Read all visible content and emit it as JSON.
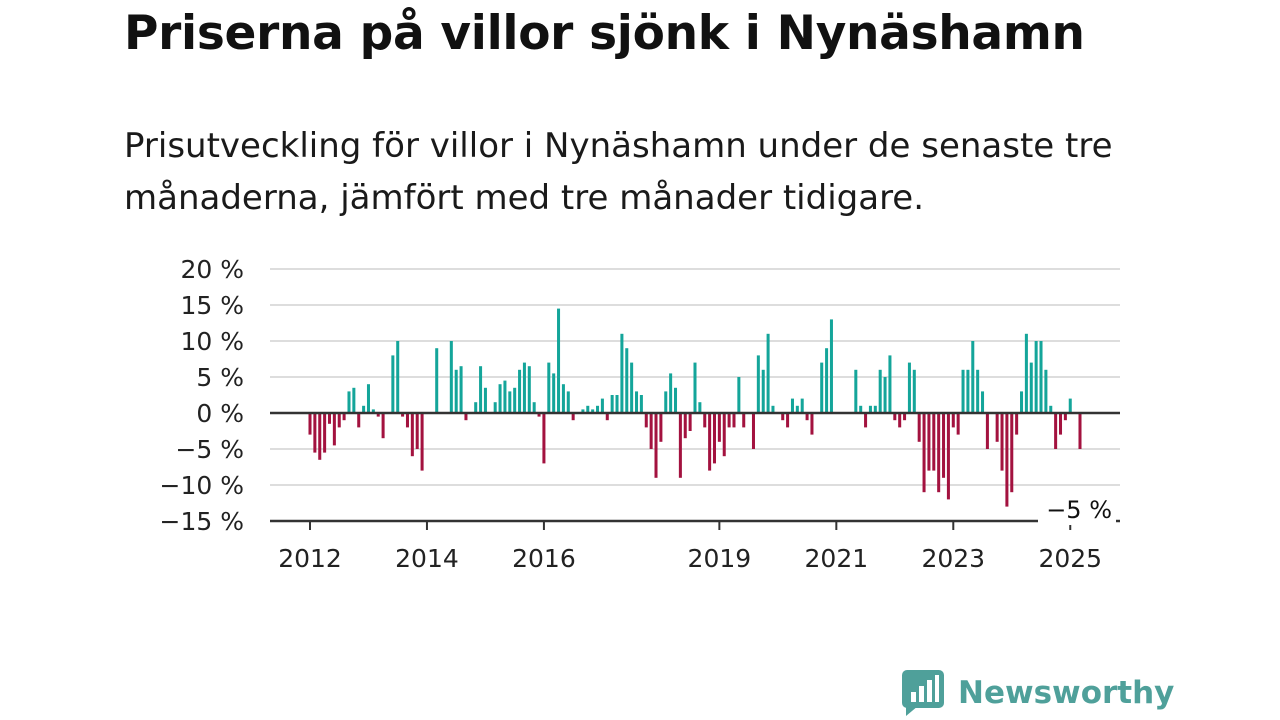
{
  "title": "Priserna på villor sjönk i Nynäshamn",
  "subtitle": "Prisutveckling för villor i Nynäshamn under de senaste tre månaderna, jämfört med tre månader tidigare.",
  "brand": {
    "name": "Newsworthy",
    "logo_icon": "bar-chart-badge-icon"
  },
  "colors": {
    "positive": "#14a59a",
    "negative": "#a3123f",
    "grid": "#dddddd",
    "zero_line": "#333333",
    "brand": "#4fa09a"
  },
  "chart_data": {
    "type": "bar",
    "title": "Priserna på villor sjönk i Nynäshamn",
    "subtitle": "Prisutveckling för villor i Nynäshamn under de senaste tre månaderna, jämfört med tre månader tidigare.",
    "xlabel": "",
    "ylabel": "",
    "unit": "%",
    "x_start": "2012-01",
    "x_end": "2025-03",
    "ylim": [
      -15,
      20
    ],
    "yticks": [
      20,
      15,
      10,
      5,
      0,
      -5,
      -10,
      -15
    ],
    "ytick_labels": [
      "20 %",
      "15 %",
      "10 %",
      "5 %",
      "0 %",
      "−5 %",
      "−10 %",
      "−15 %"
    ],
    "xticks": [
      "2012",
      "2014",
      "2016",
      "2019",
      "2021",
      "2023",
      "2025"
    ],
    "grid": true,
    "legend": "none",
    "annotation": {
      "x": "2025-03",
      "value": -5,
      "label": "−5 %"
    },
    "series": [
      {
        "values": [
          {
            "x": "2012-01",
            "y": -3.0
          },
          {
            "x": "2012-02",
            "y": -5.5
          },
          {
            "x": "2012-03",
            "y": -6.5
          },
          {
            "x": "2012-04",
            "y": -5.5
          },
          {
            "x": "2012-05",
            "y": -1.5
          },
          {
            "x": "2012-06",
            "y": -4.5
          },
          {
            "x": "2012-07",
            "y": -2.0
          },
          {
            "x": "2012-08",
            "y": -1.0
          },
          {
            "x": "2012-09",
            "y": 3.0
          },
          {
            "x": "2012-10",
            "y": 3.5
          },
          {
            "x": "2012-11",
            "y": -2.0
          },
          {
            "x": "2012-12",
            "y": 1.0
          },
          {
            "x": "2013-01",
            "y": 4.0
          },
          {
            "x": "2013-02",
            "y": 0.5
          },
          {
            "x": "2013-03",
            "y": -0.5
          },
          {
            "x": "2013-04",
            "y": -3.5
          },
          {
            "x": "2013-05",
            "y": 0.0
          },
          {
            "x": "2013-06",
            "y": 8.0
          },
          {
            "x": "2013-07",
            "y": 10.0
          },
          {
            "x": "2013-08",
            "y": -0.5
          },
          {
            "x": "2013-09",
            "y": -2.0
          },
          {
            "x": "2013-10",
            "y": -6.0
          },
          {
            "x": "2013-11",
            "y": -5.0
          },
          {
            "x": "2013-12",
            "y": -8.0
          },
          {
            "x": "2014-01",
            "y": 0.0
          },
          {
            "x": "2014-02",
            "y": 0.0
          },
          {
            "x": "2014-03",
            "y": 9.0
          },
          {
            "x": "2014-04",
            "y": 0.0
          },
          {
            "x": "2014-05",
            "y": 0.0
          },
          {
            "x": "2014-06",
            "y": 10.0
          },
          {
            "x": "2014-07",
            "y": 6.0
          },
          {
            "x": "2014-08",
            "y": 6.5
          },
          {
            "x": "2014-09",
            "y": -1.0
          },
          {
            "x": "2014-10",
            "y": 0.0
          },
          {
            "x": "2014-11",
            "y": 1.5
          },
          {
            "x": "2014-12",
            "y": 6.5
          },
          {
            "x": "2015-01",
            "y": 3.5
          },
          {
            "x": "2015-02",
            "y": 0.0
          },
          {
            "x": "2015-03",
            "y": 1.5
          },
          {
            "x": "2015-04",
            "y": 4.0
          },
          {
            "x": "2015-05",
            "y": 4.5
          },
          {
            "x": "2015-06",
            "y": 3.0
          },
          {
            "x": "2015-07",
            "y": 3.5
          },
          {
            "x": "2015-08",
            "y": 6.0
          },
          {
            "x": "2015-09",
            "y": 7.0
          },
          {
            "x": "2015-10",
            "y": 6.5
          },
          {
            "x": "2015-11",
            "y": 1.5
          },
          {
            "x": "2015-12",
            "y": -0.5
          },
          {
            "x": "2016-01",
            "y": -7.0
          },
          {
            "x": "2016-02",
            "y": 7.0
          },
          {
            "x": "2016-03",
            "y": 5.5
          },
          {
            "x": "2016-04",
            "y": 14.5
          },
          {
            "x": "2016-05",
            "y": 4.0
          },
          {
            "x": "2016-06",
            "y": 3.0
          },
          {
            "x": "2016-07",
            "y": -1.0
          },
          {
            "x": "2016-08",
            "y": 0.0
          },
          {
            "x": "2016-09",
            "y": 0.5
          },
          {
            "x": "2016-10",
            "y": 1.0
          },
          {
            "x": "2016-11",
            "y": 0.5
          },
          {
            "x": "2016-12",
            "y": 1.0
          },
          {
            "x": "2017-01",
            "y": 2.0
          },
          {
            "x": "2017-02",
            "y": -1.0
          },
          {
            "x": "2017-03",
            "y": 2.5
          },
          {
            "x": "2017-04",
            "y": 2.5
          },
          {
            "x": "2017-05",
            "y": 11.0
          },
          {
            "x": "2017-06",
            "y": 9.0
          },
          {
            "x": "2017-07",
            "y": 7.0
          },
          {
            "x": "2017-08",
            "y": 3.0
          },
          {
            "x": "2017-09",
            "y": 2.5
          },
          {
            "x": "2017-10",
            "y": -2.0
          },
          {
            "x": "2017-11",
            "y": -5.0
          },
          {
            "x": "2017-12",
            "y": -9.0
          },
          {
            "x": "2018-01",
            "y": -4.0
          },
          {
            "x": "2018-02",
            "y": 3.0
          },
          {
            "x": "2018-03",
            "y": 5.5
          },
          {
            "x": "2018-04",
            "y": 3.5
          },
          {
            "x": "2018-05",
            "y": -9.0
          },
          {
            "x": "2018-06",
            "y": -3.5
          },
          {
            "x": "2018-07",
            "y": -2.5
          },
          {
            "x": "2018-08",
            "y": 7.0
          },
          {
            "x": "2018-09",
            "y": 1.5
          },
          {
            "x": "2018-10",
            "y": -2.0
          },
          {
            "x": "2018-11",
            "y": -8.0
          },
          {
            "x": "2018-12",
            "y": -7.0
          },
          {
            "x": "2019-01",
            "y": -4.0
          },
          {
            "x": "2019-02",
            "y": -6.0
          },
          {
            "x": "2019-03",
            "y": -2.0
          },
          {
            "x": "2019-04",
            "y": -2.0
          },
          {
            "x": "2019-05",
            "y": 5.0
          },
          {
            "x": "2019-06",
            "y": -2.0
          },
          {
            "x": "2019-07",
            "y": 0.0
          },
          {
            "x": "2019-08",
            "y": -5.0
          },
          {
            "x": "2019-09",
            "y": 8.0
          },
          {
            "x": "2019-10",
            "y": 6.0
          },
          {
            "x": "2019-11",
            "y": 11.0
          },
          {
            "x": "2019-12",
            "y": 1.0
          },
          {
            "x": "2020-01",
            "y": 0.0
          },
          {
            "x": "2020-02",
            "y": -1.0
          },
          {
            "x": "2020-03",
            "y": -2.0
          },
          {
            "x": "2020-04",
            "y": 2.0
          },
          {
            "x": "2020-05",
            "y": 1.0
          },
          {
            "x": "2020-06",
            "y": 2.0
          },
          {
            "x": "2020-07",
            "y": -1.0
          },
          {
            "x": "2020-08",
            "y": -3.0
          },
          {
            "x": "2020-09",
            "y": 0.0
          },
          {
            "x": "2020-10",
            "y": 7.0
          },
          {
            "x": "2020-11",
            "y": 9.0
          },
          {
            "x": "2020-12",
            "y": 13.0
          },
          {
            "x": "2021-01",
            "y": 0.0
          },
          {
            "x": "2021-02",
            "y": 0.0
          },
          {
            "x": "2021-03",
            "y": 0.0
          },
          {
            "x": "2021-04",
            "y": 0.0
          },
          {
            "x": "2021-05",
            "y": 6.0
          },
          {
            "x": "2021-06",
            "y": 1.0
          },
          {
            "x": "2021-07",
            "y": -2.0
          },
          {
            "x": "2021-08",
            "y": 1.0
          },
          {
            "x": "2021-09",
            "y": 1.0
          },
          {
            "x": "2021-10",
            "y": 6.0
          },
          {
            "x": "2021-11",
            "y": 5.0
          },
          {
            "x": "2021-12",
            "y": 8.0
          },
          {
            "x": "2022-01",
            "y": -1.0
          },
          {
            "x": "2022-02",
            "y": -2.0
          },
          {
            "x": "2022-03",
            "y": -1.0
          },
          {
            "x": "2022-04",
            "y": 7.0
          },
          {
            "x": "2022-05",
            "y": 6.0
          },
          {
            "x": "2022-06",
            "y": -4.0
          },
          {
            "x": "2022-07",
            "y": -11.0
          },
          {
            "x": "2022-08",
            "y": -8.0
          },
          {
            "x": "2022-09",
            "y": -8.0
          },
          {
            "x": "2022-10",
            "y": -11.0
          },
          {
            "x": "2022-11",
            "y": -9.0
          },
          {
            "x": "2022-12",
            "y": -12.0
          },
          {
            "x": "2023-01",
            "y": -2.0
          },
          {
            "x": "2023-02",
            "y": -3.0
          },
          {
            "x": "2023-03",
            "y": 6.0
          },
          {
            "x": "2023-04",
            "y": 6.0
          },
          {
            "x": "2023-05",
            "y": 10.0
          },
          {
            "x": "2023-06",
            "y": 6.0
          },
          {
            "x": "2023-07",
            "y": 3.0
          },
          {
            "x": "2023-08",
            "y": -5.0
          },
          {
            "x": "2023-09",
            "y": 0.0
          },
          {
            "x": "2023-10",
            "y": -4.0
          },
          {
            "x": "2023-11",
            "y": -8.0
          },
          {
            "x": "2023-12",
            "y": -13.0
          },
          {
            "x": "2024-01",
            "y": -11.0
          },
          {
            "x": "2024-02",
            "y": -3.0
          },
          {
            "x": "2024-03",
            "y": 3.0
          },
          {
            "x": "2024-04",
            "y": 11.0
          },
          {
            "x": "2024-05",
            "y": 7.0
          },
          {
            "x": "2024-06",
            "y": 10.0
          },
          {
            "x": "2024-07",
            "y": 10.0
          },
          {
            "x": "2024-08",
            "y": 6.0
          },
          {
            "x": "2024-09",
            "y": 1.0
          },
          {
            "x": "2024-10",
            "y": -5.0
          },
          {
            "x": "2024-11",
            "y": -3.0
          },
          {
            "x": "2024-12",
            "y": -1.0
          },
          {
            "x": "2025-01",
            "y": 2.0
          },
          {
            "x": "2025-02",
            "y": 0.0
          },
          {
            "x": "2025-03",
            "y": -5.0
          }
        ]
      }
    ]
  }
}
